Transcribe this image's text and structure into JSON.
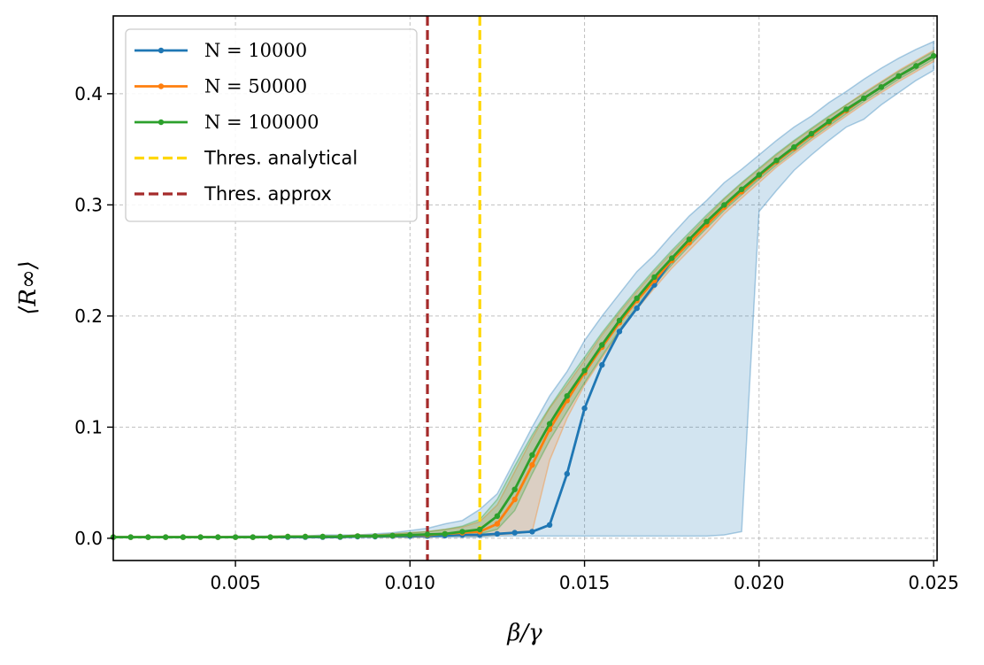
{
  "chart_data": {
    "type": "line",
    "xlabel": "β/γ",
    "ylabel": "⟨R∞⟩",
    "xlim": [
      0.0015,
      0.0251
    ],
    "ylim": [
      -0.02,
      0.47
    ],
    "xticks": [
      0.005,
      0.01,
      0.015,
      0.02,
      0.025
    ],
    "xtick_labels": [
      "0.005",
      "0.010",
      "0.015",
      "0.020",
      "0.025"
    ],
    "yticks": [
      0.0,
      0.1,
      0.2,
      0.3,
      0.4
    ],
    "ytick_labels": [
      "0.0",
      "0.1",
      "0.2",
      "0.3",
      "0.4"
    ],
    "grid": true,
    "legend_position": "top-left",
    "x": [
      0.0015,
      0.002,
      0.0025,
      0.003,
      0.0035,
      0.004,
      0.0045,
      0.005,
      0.0055,
      0.006,
      0.0065,
      0.007,
      0.0075,
      0.008,
      0.0085,
      0.009,
      0.0095,
      0.01,
      0.0105,
      0.011,
      0.0115,
      0.012,
      0.0125,
      0.013,
      0.0135,
      0.014,
      0.0145,
      0.015,
      0.0155,
      0.016,
      0.0165,
      0.017,
      0.0175,
      0.018,
      0.0185,
      0.019,
      0.0195,
      0.02,
      0.0205,
      0.021,
      0.0215,
      0.022,
      0.0225,
      0.023,
      0.0235,
      0.024,
      0.0245,
      0.025
    ],
    "series": [
      {
        "name": "N = 10000",
        "color": "#1f77b4",
        "values": [
          0.001,
          0.001,
          0.001,
          0.001,
          0.001,
          0.001,
          0.001,
          0.001,
          0.001,
          0.001,
          0.001,
          0.001,
          0.001,
          0.001,
          0.0015,
          0.0015,
          0.002,
          0.002,
          0.002,
          0.0025,
          0.003,
          0.003,
          0.004,
          0.005,
          0.006,
          0.012,
          0.058,
          0.117,
          0.156,
          0.186,
          0.207,
          0.228,
          0.25,
          0.268,
          0.284,
          0.299,
          0.312,
          0.326,
          0.339,
          0.351,
          0.363,
          0.374,
          0.385,
          0.396,
          0.406,
          0.416,
          0.425,
          0.434
        ],
        "band_low": [
          0.001,
          0.001,
          0.001,
          0.001,
          0.001,
          0.001,
          0.001,
          0.001,
          0.001,
          0.001,
          0.001,
          0.001,
          0.001,
          0.001,
          0.001,
          0.001,
          0.001,
          0.001,
          0.001,
          0.001,
          0.001,
          0.001,
          0.002,
          0.002,
          0.002,
          0.002,
          0.002,
          0.002,
          0.002,
          0.002,
          0.002,
          0.002,
          0.002,
          0.002,
          0.002,
          0.003,
          0.006,
          0.294,
          0.313,
          0.331,
          0.345,
          0.358,
          0.37,
          0.377,
          0.39,
          0.401,
          0.412,
          0.421
        ],
        "band_high": [
          0.001,
          0.001,
          0.001,
          0.001,
          0.001,
          0.001,
          0.001,
          0.002,
          0.002,
          0.002,
          0.002,
          0.002,
          0.003,
          0.003,
          0.003,
          0.004,
          0.005,
          0.007,
          0.009,
          0.013,
          0.016,
          0.026,
          0.04,
          0.07,
          0.1,
          0.128,
          0.15,
          0.178,
          0.2,
          0.22,
          0.24,
          0.255,
          0.273,
          0.29,
          0.304,
          0.32,
          0.332,
          0.345,
          0.358,
          0.37,
          0.38,
          0.392,
          0.402,
          0.413,
          0.423,
          0.432,
          0.44,
          0.447
        ]
      },
      {
        "name": "N = 50000",
        "color": "#ff7f0e",
        "values": [
          0.001,
          0.001,
          0.001,
          0.001,
          0.001,
          0.001,
          0.001,
          0.001,
          0.001,
          0.001,
          0.0015,
          0.0015,
          0.0015,
          0.0015,
          0.002,
          0.002,
          0.0025,
          0.003,
          0.003,
          0.004,
          0.005,
          0.006,
          0.013,
          0.035,
          0.066,
          0.098,
          0.124,
          0.149,
          0.172,
          0.194,
          0.214,
          0.232,
          0.25,
          0.266,
          0.282,
          0.298,
          0.312,
          0.326,
          0.339,
          0.351,
          0.363,
          0.374,
          0.385,
          0.396,
          0.406,
          0.416,
          0.425,
          0.434
        ],
        "band_low": [
          0.001,
          0.001,
          0.001,
          0.001,
          0.001,
          0.001,
          0.001,
          0.001,
          0.001,
          0.001,
          0.001,
          0.001,
          0.001,
          0.001,
          0.001,
          0.001,
          0.001,
          0.001,
          0.001,
          0.002,
          0.002,
          0.002,
          0.003,
          0.004,
          0.006,
          0.07,
          0.108,
          0.138,
          0.162,
          0.186,
          0.206,
          0.225,
          0.243,
          0.259,
          0.275,
          0.292,
          0.306,
          0.32,
          0.334,
          0.346,
          0.358,
          0.369,
          0.38,
          0.391,
          0.401,
          0.411,
          0.42,
          0.429
        ],
        "band_high": [
          0.001,
          0.001,
          0.001,
          0.001,
          0.001,
          0.001,
          0.001,
          0.001,
          0.001,
          0.002,
          0.002,
          0.002,
          0.002,
          0.002,
          0.003,
          0.003,
          0.004,
          0.005,
          0.006,
          0.008,
          0.01,
          0.015,
          0.03,
          0.06,
          0.09,
          0.117,
          0.138,
          0.16,
          0.183,
          0.203,
          0.222,
          0.24,
          0.257,
          0.273,
          0.289,
          0.305,
          0.319,
          0.332,
          0.345,
          0.357,
          0.368,
          0.379,
          0.39,
          0.401,
          0.411,
          0.421,
          0.43,
          0.439
        ]
      },
      {
        "name": "N = 100000",
        "color": "#2ca02c",
        "values": [
          0.001,
          0.001,
          0.001,
          0.001,
          0.001,
          0.001,
          0.001,
          0.001,
          0.001,
          0.001,
          0.0015,
          0.0015,
          0.0015,
          0.0015,
          0.002,
          0.002,
          0.0025,
          0.003,
          0.0035,
          0.004,
          0.006,
          0.008,
          0.02,
          0.044,
          0.075,
          0.103,
          0.128,
          0.151,
          0.174,
          0.196,
          0.216,
          0.235,
          0.252,
          0.269,
          0.285,
          0.3,
          0.314,
          0.327,
          0.34,
          0.352,
          0.364,
          0.375,
          0.386,
          0.396,
          0.406,
          0.416,
          0.425,
          0.434
        ],
        "band_low": [
          0.001,
          0.001,
          0.001,
          0.001,
          0.001,
          0.001,
          0.001,
          0.001,
          0.001,
          0.001,
          0.001,
          0.001,
          0.001,
          0.001,
          0.001,
          0.001,
          0.001,
          0.001,
          0.002,
          0.002,
          0.003,
          0.004,
          0.008,
          0.025,
          0.058,
          0.088,
          0.114,
          0.14,
          0.164,
          0.187,
          0.208,
          0.228,
          0.246,
          0.263,
          0.279,
          0.295,
          0.309,
          0.323,
          0.336,
          0.348,
          0.36,
          0.371,
          0.382,
          0.393,
          0.403,
          0.413,
          0.422,
          0.431
        ],
        "band_high": [
          0.001,
          0.001,
          0.001,
          0.001,
          0.001,
          0.001,
          0.001,
          0.001,
          0.001,
          0.002,
          0.002,
          0.002,
          0.002,
          0.002,
          0.003,
          0.003,
          0.004,
          0.005,
          0.006,
          0.008,
          0.011,
          0.017,
          0.035,
          0.065,
          0.093,
          0.118,
          0.141,
          0.163,
          0.185,
          0.205,
          0.224,
          0.242,
          0.259,
          0.275,
          0.291,
          0.306,
          0.32,
          0.333,
          0.346,
          0.358,
          0.369,
          0.38,
          0.39,
          0.4,
          0.41,
          0.42,
          0.429,
          0.438
        ]
      }
    ],
    "thresholds": [
      {
        "name": "Thres. analytical",
        "x": 0.012,
        "color": "#ffd700"
      },
      {
        "name": "Thres. approx",
        "x": 0.0105,
        "color": "#a52a2a"
      }
    ],
    "legend": [
      {
        "label": "N = 10000",
        "kind": "series",
        "color": "#1f77b4",
        "math": true
      },
      {
        "label": "N = 50000",
        "kind": "series",
        "color": "#ff7f0e",
        "math": true
      },
      {
        "label": "N = 100000",
        "kind": "series",
        "color": "#2ca02c",
        "math": true
      },
      {
        "label": "Thres. analytical",
        "kind": "threshold",
        "color": "#ffd700",
        "math": false
      },
      {
        "label": "Thres. approx",
        "kind": "threshold",
        "color": "#a52a2a",
        "math": false
      }
    ]
  }
}
